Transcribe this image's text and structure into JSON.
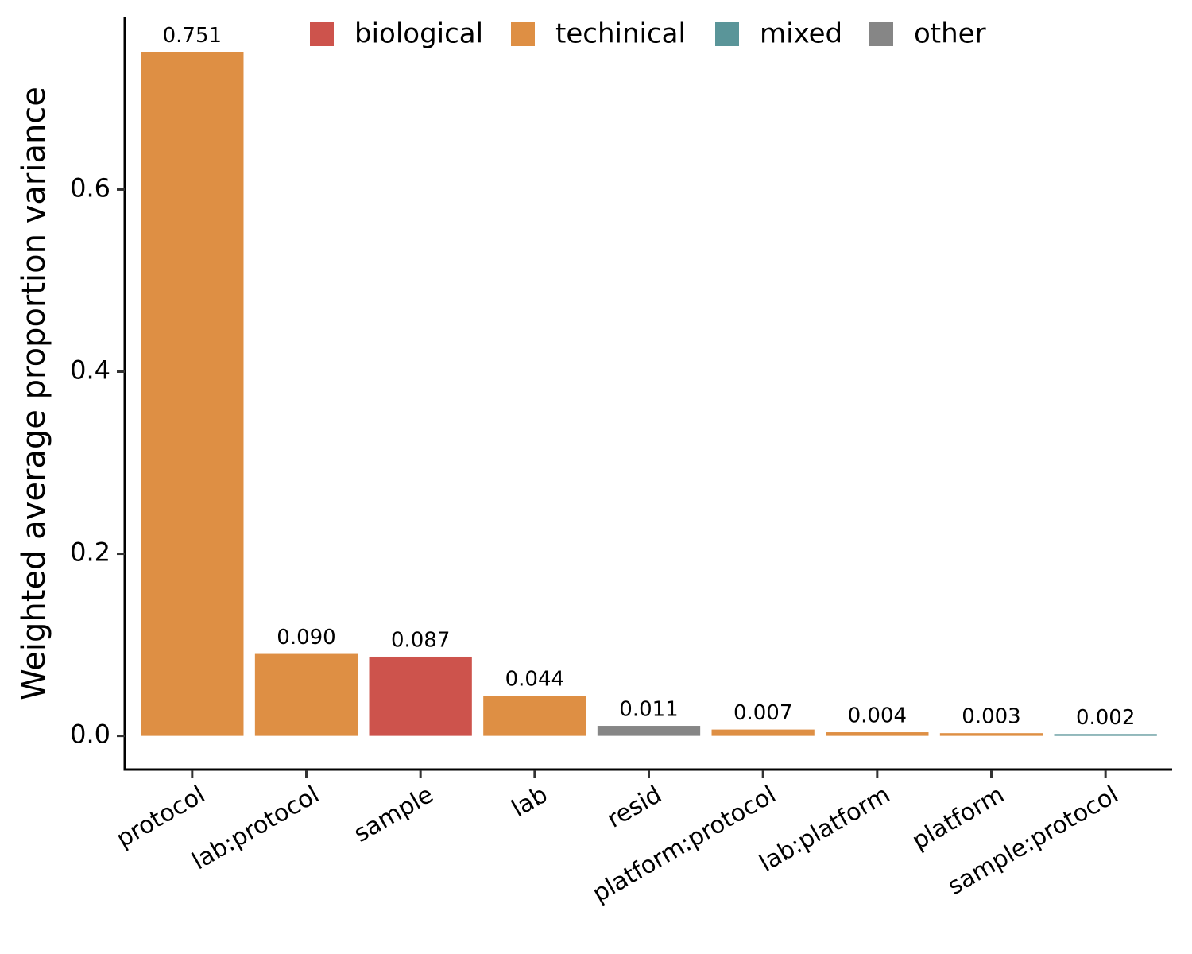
{
  "chart_data": {
    "type": "bar",
    "y_label": "Weighted average proportion variance",
    "categories": [
      "protocol",
      "lab:protocol",
      "sample",
      "lab",
      "resid",
      "platform:protocol",
      "lab:platform",
      "platform",
      "sample:protocol"
    ],
    "series": [
      {
        "name": "biological",
        "color": "#cd534c",
        "values": [
          null,
          null,
          0.087,
          null,
          null,
          null,
          null,
          null,
          null
        ],
        "value_labels": [
          null,
          null,
          "0.087",
          null,
          null,
          null,
          null,
          null,
          null
        ]
      },
      {
        "name": "techinical",
        "color": "#de8f44",
        "values": [
          0.751,
          0.09,
          null,
          0.044,
          null,
          0.007,
          0.004,
          0.003,
          null
        ],
        "value_labels": [
          "0.751",
          "0.090",
          null,
          "0.044",
          null,
          "0.007",
          "0.004",
          "0.003",
          null
        ]
      },
      {
        "name": "mixed",
        "color": "#5a9599",
        "values": [
          null,
          null,
          null,
          null,
          null,
          null,
          null,
          null,
          0.002
        ],
        "value_labels": [
          null,
          null,
          null,
          null,
          null,
          null,
          null,
          null,
          "0.002"
        ]
      },
      {
        "name": "other",
        "color": "#868686",
        "values": [
          null,
          null,
          null,
          null,
          0.011,
          null,
          null,
          null,
          null
        ],
        "value_labels": [
          null,
          null,
          null,
          null,
          "0.011",
          null,
          null,
          null,
          null
        ]
      }
    ],
    "ylim": [
      -0.037,
      0.789
    ],
    "yticks": [
      {
        "value": 0,
        "label": "0.0"
      },
      0.2,
      0.4,
      0.6
    ],
    "legend": "top"
  }
}
